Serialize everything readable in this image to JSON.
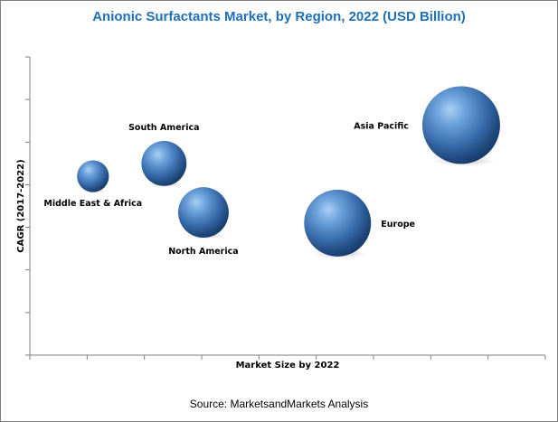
{
  "chart_data": {
    "type": "bubble",
    "title": "Anionic Surfactants Market, by Region, 2022 (USD Billion)",
    "xlabel": "Market Size by 2022",
    "ylabel": "CAGR (2017-2022)",
    "grid": false,
    "source": "Source: MarketsandMarkets Analysis",
    "bubble_color": "#3d74b3",
    "series": [
      {
        "name": "Asia Pacific",
        "x": 8.2,
        "y": 5.4,
        "size": 1.0
      },
      {
        "name": "Europe",
        "x": 5.85,
        "y": 3.1,
        "size": 0.86
      },
      {
        "name": "North America",
        "x": 3.3,
        "y": 3.35,
        "size": 0.65
      },
      {
        "name": "South America",
        "x": 2.55,
        "y": 4.5,
        "size": 0.58
      },
      {
        "name": "Middle East & Africa",
        "x": 1.2,
        "y": 4.2,
        "size": 0.41
      }
    ]
  }
}
